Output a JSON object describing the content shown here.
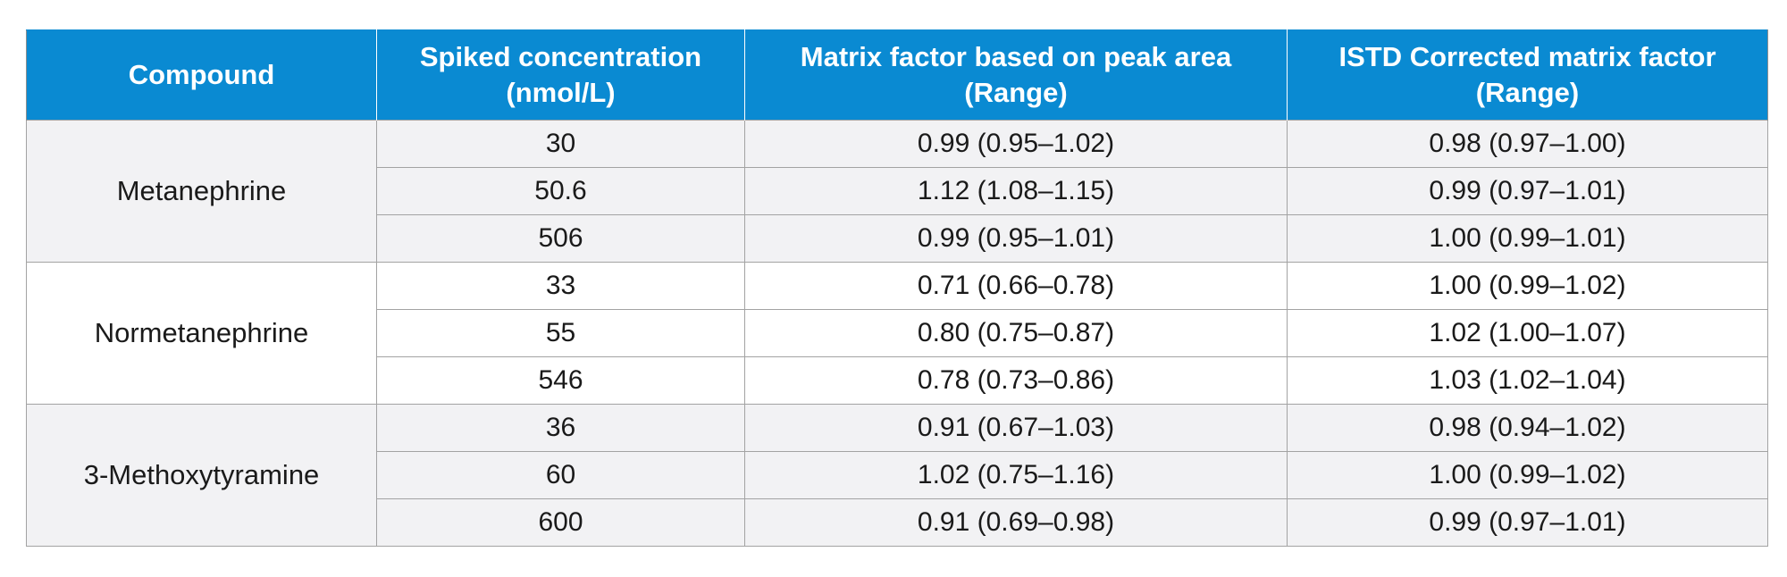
{
  "table": {
    "headers": [
      [
        "Compound"
      ],
      [
        "Spiked concentration",
        "(nmol/L)"
      ],
      [
        "Matrix factor based on peak area",
        "(Range)"
      ],
      [
        "ISTD Corrected matrix factor",
        "(Range)"
      ]
    ],
    "groups": [
      {
        "compound": "Metanephrine",
        "rows": [
          {
            "conc": "30",
            "mf": "0.99 (0.95–1.02)",
            "istd": "0.98 (0.97–1.00)"
          },
          {
            "conc": "50.6",
            "mf": "1.12 (1.08–1.15)",
            "istd": "0.99 (0.97–1.01)"
          },
          {
            "conc": "506",
            "mf": "0.99 (0.95–1.01)",
            "istd": "1.00 (0.99–1.01)"
          }
        ]
      },
      {
        "compound": "Normetanephrine",
        "rows": [
          {
            "conc": "33",
            "mf": "0.71 (0.66–0.78)",
            "istd": "1.00 (0.99–1.02)"
          },
          {
            "conc": "55",
            "mf": "0.80 (0.75–0.87)",
            "istd": "1.02 (1.00–1.07)"
          },
          {
            "conc": "546",
            "mf": "0.78 (0.73–0.86)",
            "istd": "1.03 (1.02–1.04)"
          }
        ]
      },
      {
        "compound": "3-Methoxytyramine",
        "rows": [
          {
            "conc": "36",
            "mf": "0.91 (0.67–1.03)",
            "istd": "0.98 (0.94–1.02)"
          },
          {
            "conc": "60",
            "mf": "1.02 (0.75–1.16)",
            "istd": "1.00 (0.99–1.02)"
          },
          {
            "conc": "600",
            "mf": "0.91 (0.69–0.98)",
            "istd": "0.99 (0.97–1.01)"
          }
        ]
      }
    ]
  }
}
